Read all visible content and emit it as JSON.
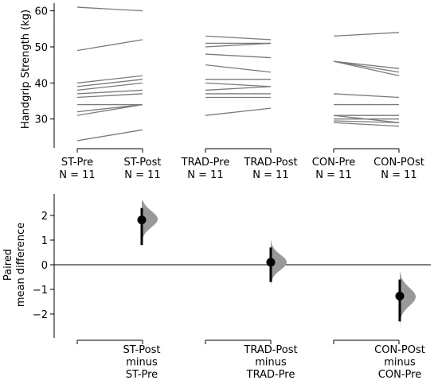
{
  "chart_data": [
    {
      "type": "line",
      "ylabel": "Handgrip Strength (kg)",
      "ylim": [
        22,
        63
      ],
      "yticks": [
        30,
        40,
        50,
        60
      ],
      "grid": false,
      "groups": [
        {
          "name": "ST",
          "pre_label": "ST-Pre",
          "post_label": "ST-Post",
          "pre_n": "N = 11",
          "post_n": "N = 11",
          "pairs": [
            [
              61,
              60
            ],
            [
              49,
              52
            ],
            [
              40,
              42
            ],
            [
              39,
              41
            ],
            [
              38,
              40
            ],
            [
              37,
              38
            ],
            [
              36,
              37
            ],
            [
              34,
              34
            ],
            [
              32,
              34
            ],
            [
              31,
              34
            ],
            [
              24,
              27
            ]
          ]
        },
        {
          "name": "TRAD",
          "pre_label": "TRAD-Pre",
          "post_label": "TRAD-Post",
          "pre_n": "N = 11",
          "post_n": "N = 11",
          "pairs": [
            [
              53,
              52
            ],
            [
              51,
              51
            ],
            [
              50,
              51
            ],
            [
              48,
              47
            ],
            [
              45,
              43
            ],
            [
              41,
              41
            ],
            [
              40,
              39
            ],
            [
              38,
              39
            ],
            [
              37,
              37
            ],
            [
              36,
              36
            ],
            [
              31,
              33
            ]
          ]
        },
        {
          "name": "CON",
          "pre_label": "CON-Pre",
          "post_label": "CON-POst",
          "pre_n": "N = 11",
          "post_n": "N = 11",
          "pairs": [
            [
              53,
              54
            ],
            [
              46,
              44
            ],
            [
              46,
              43
            ],
            [
              46,
              42
            ],
            [
              37,
              36
            ],
            [
              34,
              34
            ],
            [
              31,
              31
            ],
            [
              31,
              29
            ],
            [
              30,
              30
            ],
            [
              29.5,
              29
            ],
            [
              29,
              28
            ]
          ]
        }
      ]
    },
    {
      "type": "scatter",
      "ylabel_lines": [
        "Paired",
        "mean difference"
      ],
      "ylim": [
        -2.9,
        2.9
      ],
      "yticks": [
        -2,
        -1,
        0,
        1,
        2
      ],
      "yticklabels": [
        "−2",
        "−1",
        "0",
        "1",
        "2"
      ],
      "grid": false,
      "comparisons": [
        {
          "label_lines": [
            "ST-Post",
            "minus",
            "ST-Pre"
          ],
          "mean": 1.82,
          "ci": [
            0.8,
            2.3
          ],
          "dist_lo": 0.55,
          "dist_hi": 2.6,
          "dist_mode": 1.85
        },
        {
          "label_lines": [
            "TRAD-Post",
            "minus",
            "TRAD-Pre"
          ],
          "mean": 0.1,
          "ci": [
            -0.7,
            0.7
          ],
          "dist_lo": -0.9,
          "dist_hi": 1.05,
          "dist_mode": 0.1
        },
        {
          "label_lines": [
            "CON-POst",
            "minus",
            "CON-Pre"
          ],
          "mean": -1.27,
          "ci": [
            -2.3,
            -0.6
          ],
          "dist_lo": -2.6,
          "dist_hi": -0.3,
          "dist_mode": -1.3
        }
      ]
    }
  ]
}
